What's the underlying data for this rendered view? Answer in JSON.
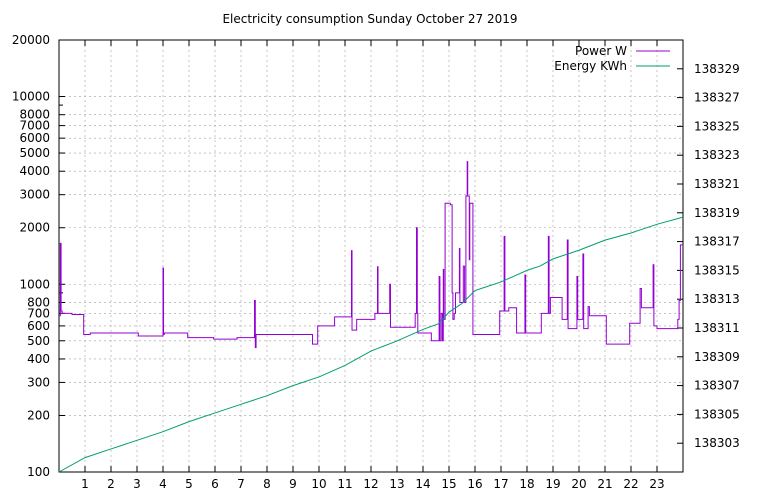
{
  "chart_data": {
    "type": "line",
    "title": "Electricity consumption Sunday October 27 2019",
    "x": {
      "range": [
        0,
        24
      ],
      "ticks": [
        1,
        2,
        3,
        4,
        5,
        6,
        7,
        8,
        9,
        10,
        11,
        12,
        13,
        14,
        15,
        16,
        17,
        18,
        19,
        20,
        21,
        22,
        23
      ],
      "grid": true
    },
    "y_left": {
      "scale": "log",
      "range": [
        100,
        20000
      ],
      "ticks": [
        100,
        200,
        300,
        400,
        500,
        600,
        700,
        800,
        1000,
        2000,
        3000,
        4000,
        5000,
        6000,
        7000,
        8000,
        10000,
        20000
      ],
      "minor_ticks": [
        900,
        9000
      ],
      "grid": true
    },
    "y_right": {
      "scale": "linear",
      "range": [
        138301.0,
        138331.0
      ],
      "ticks": [
        138303,
        138305,
        138307,
        138309,
        138311,
        138313,
        138315,
        138317,
        138319,
        138321,
        138323,
        138325,
        138327,
        138329
      ]
    },
    "legend": {
      "position": "top-right",
      "entries": [
        {
          "label": "Power W",
          "color": "#9400d3"
        },
        {
          "label": "Energy KWh",
          "color": "#009e73"
        }
      ]
    },
    "series": [
      {
        "name": "Power W",
        "axis": "left",
        "color": "#9400d3",
        "points": [
          [
            0,
            680
          ],
          [
            0.05,
            1650
          ],
          [
            0.08,
            720
          ],
          [
            0.12,
            700
          ],
          [
            0.3,
            700
          ],
          [
            0.5,
            690
          ],
          [
            0.9,
            690
          ],
          [
            0.95,
            540
          ],
          [
            1.2,
            550
          ],
          [
            1.5,
            550
          ],
          [
            2,
            550
          ],
          [
            3,
            550
          ],
          [
            3.05,
            530
          ],
          [
            3.95,
            530
          ],
          [
            4.0,
            1220
          ],
          [
            4.02,
            540
          ],
          [
            4.05,
            550
          ],
          [
            4.9,
            550
          ],
          [
            4.95,
            520
          ],
          [
            5.5,
            520
          ],
          [
            5.9,
            520
          ],
          [
            5.95,
            510
          ],
          [
            6.8,
            510
          ],
          [
            6.85,
            520
          ],
          [
            7.5,
            520
          ],
          [
            7.52,
            820
          ],
          [
            7.55,
            460
          ],
          [
            7.58,
            540
          ],
          [
            8,
            540
          ],
          [
            8.5,
            540
          ],
          [
            9,
            540
          ],
          [
            9.7,
            540
          ],
          [
            9.75,
            480
          ],
          [
            9.9,
            480
          ],
          [
            9.95,
            600
          ],
          [
            10.2,
            600
          ],
          [
            10.5,
            600
          ],
          [
            10.6,
            670
          ],
          [
            11.2,
            670
          ],
          [
            11.25,
            1510
          ],
          [
            11.27,
            570
          ],
          [
            11.4,
            570
          ],
          [
            11.45,
            650
          ],
          [
            12.1,
            650
          ],
          [
            12.15,
            700
          ],
          [
            12.25,
            1240
          ],
          [
            12.27,
            700
          ],
          [
            12.4,
            700
          ],
          [
            12.7,
            700
          ],
          [
            12.72,
            1000
          ],
          [
            12.75,
            590
          ],
          [
            13,
            590
          ],
          [
            13.5,
            590
          ],
          [
            13.65,
            590
          ],
          [
            13.7,
            700
          ],
          [
            13.75,
            2000
          ],
          [
            13.78,
            700
          ],
          [
            13.8,
            550
          ],
          [
            14,
            550
          ],
          [
            14.3,
            550
          ],
          [
            14.32,
            500
          ],
          [
            14.6,
            500
          ],
          [
            14.62,
            1100
          ],
          [
            14.65,
            500
          ],
          [
            14.7,
            700
          ],
          [
            14.75,
            500
          ],
          [
            14.78,
            1200
          ],
          [
            14.8,
            650
          ],
          [
            14.85,
            2700
          ],
          [
            15.0,
            2700
          ],
          [
            15.05,
            2650
          ],
          [
            15.1,
            2650
          ],
          [
            15.12,
            900
          ],
          [
            15.15,
            650
          ],
          [
            15.2,
            700
          ],
          [
            15.25,
            900
          ],
          [
            15.35,
            900
          ],
          [
            15.4,
            1550
          ],
          [
            15.42,
            800
          ],
          [
            15.5,
            800
          ],
          [
            15.55,
            1250
          ],
          [
            15.6,
            800
          ],
          [
            15.65,
            2950
          ],
          [
            15.7,
            4500
          ],
          [
            15.72,
            2950
          ],
          [
            15.75,
            2950
          ],
          [
            15.78,
            1350
          ],
          [
            15.8,
            2700
          ],
          [
            15.85,
            2700
          ],
          [
            15.9,
            2700
          ],
          [
            15.92,
            540
          ],
          [
            16,
            540
          ],
          [
            16.3,
            540
          ],
          [
            16.5,
            540
          ],
          [
            16.9,
            540
          ],
          [
            16.95,
            720
          ],
          [
            17.1,
            720
          ],
          [
            17.12,
            1800
          ],
          [
            17.15,
            720
          ],
          [
            17.2,
            720
          ],
          [
            17.3,
            750
          ],
          [
            17.5,
            750
          ],
          [
            17.6,
            550
          ],
          [
            17.9,
            550
          ],
          [
            17.92,
            1120
          ],
          [
            17.95,
            550
          ],
          [
            18.3,
            550
          ],
          [
            18.5,
            550
          ],
          [
            18.55,
            700
          ],
          [
            18.8,
            700
          ],
          [
            18.82,
            1800
          ],
          [
            18.85,
            700
          ],
          [
            18.9,
            850
          ],
          [
            19.3,
            850
          ],
          [
            19.35,
            650
          ],
          [
            19.5,
            650
          ],
          [
            19.55,
            1720
          ],
          [
            19.58,
            580
          ],
          [
            19.9,
            580
          ],
          [
            19.92,
            1100
          ],
          [
            19.95,
            650
          ],
          [
            20.1,
            650
          ],
          [
            20.15,
            1450
          ],
          [
            20.18,
            580
          ],
          [
            20.3,
            580
          ],
          [
            20.35,
            760
          ],
          [
            20.4,
            680
          ],
          [
            21.0,
            680
          ],
          [
            21.05,
            480
          ],
          [
            21.5,
            480
          ],
          [
            21.9,
            480
          ],
          [
            21.95,
            620
          ],
          [
            22.3,
            620
          ],
          [
            22.35,
            950
          ],
          [
            22.4,
            750
          ],
          [
            22.8,
            750
          ],
          [
            22.85,
            1270
          ],
          [
            22.88,
            600
          ],
          [
            23,
            580
          ],
          [
            23.5,
            580
          ],
          [
            23.75,
            580
          ],
          [
            23.8,
            650
          ],
          [
            23.85,
            820
          ],
          [
            23.9,
            1620
          ],
          [
            24,
            1620
          ]
        ]
      },
      {
        "name": "Energy KWh",
        "axis": "right",
        "color": "#009e73",
        "points": [
          [
            0,
            138301.0
          ],
          [
            1,
            138302.0
          ],
          [
            2,
            138302.6
          ],
          [
            3,
            138303.2
          ],
          [
            4,
            138303.8
          ],
          [
            5,
            138304.5
          ],
          [
            6,
            138305.1
          ],
          [
            7,
            138305.7
          ],
          [
            8,
            138306.3
          ],
          [
            9,
            138307.0
          ],
          [
            10,
            138307.6
          ],
          [
            11,
            138308.4
          ],
          [
            12,
            138309.4
          ],
          [
            13,
            138310.1
          ],
          [
            14,
            138310.9
          ],
          [
            14.6,
            138311.3
          ],
          [
            15,
            138312.1
          ],
          [
            15.5,
            138312.7
          ],
          [
            16,
            138313.6
          ],
          [
            16.5,
            138313.9
          ],
          [
            17,
            138314.2
          ],
          [
            17.5,
            138314.6
          ],
          [
            18,
            138315.0
          ],
          [
            18.5,
            138315.3
          ],
          [
            19,
            138315.8
          ],
          [
            20,
            138316.4
          ],
          [
            21,
            138317.1
          ],
          [
            22,
            138317.6
          ],
          [
            23,
            138318.2
          ],
          [
            24,
            138318.7
          ]
        ]
      }
    ]
  }
}
